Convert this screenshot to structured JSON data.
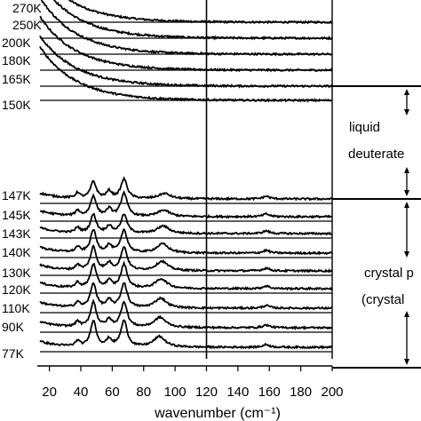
{
  "chart_data": {
    "type": "line",
    "xlabel": "wavenumber (cm⁻¹)",
    "ylabel": "",
    "xlim": [
      14,
      200
    ],
    "x_ticks": [
      "20",
      "40",
      "60",
      "80",
      "100",
      "120",
      "140",
      "160",
      "180",
      "200"
    ],
    "grid": false,
    "legend": "none",
    "series": [
      {
        "name": "270K",
        "phase": "liquid",
        "offset_rank": 0
      },
      {
        "name": "250K",
        "phase": "liquid",
        "offset_rank": 1
      },
      {
        "name": "200K",
        "phase": "liquid",
        "offset_rank": 2
      },
      {
        "name": "180K",
        "phase": "liquid",
        "offset_rank": 3
      },
      {
        "name": "165K",
        "phase": "liquid",
        "offset_rank": 4
      },
      {
        "name": "150K",
        "phase": "liquid",
        "offset_rank": 5
      },
      {
        "name": "147K",
        "phase": "crystal",
        "offset_rank": 6
      },
      {
        "name": "145K",
        "phase": "crystal",
        "offset_rank": 7
      },
      {
        "name": "143K",
        "phase": "crystal",
        "offset_rank": 8
      },
      {
        "name": "140K",
        "phase": "crystal",
        "offset_rank": 9
      },
      {
        "name": "130K",
        "phase": "crystal",
        "offset_rank": 10
      },
      {
        "name": "120K",
        "phase": "crystal",
        "offset_rank": 11
      },
      {
        "name": "110K",
        "phase": "crystal",
        "offset_rank": 12
      },
      {
        "name": "90K",
        "phase": "crystal",
        "offset_rank": 13
      },
      {
        "name": "77K",
        "phase": "crystal",
        "offset_rank": 14
      }
    ],
    "crystal_peaks_cm1": [
      38,
      48,
      58,
      67,
      69,
      90,
      95,
      158
    ],
    "phase_labels": {
      "liquid_line1": "liquid",
      "liquid_line2": "deuterate",
      "crystal_line1": "crystal p",
      "crystal_line2": "(crystal"
    },
    "colors": {
      "line": "#000000",
      "background": "#ffffff"
    }
  }
}
